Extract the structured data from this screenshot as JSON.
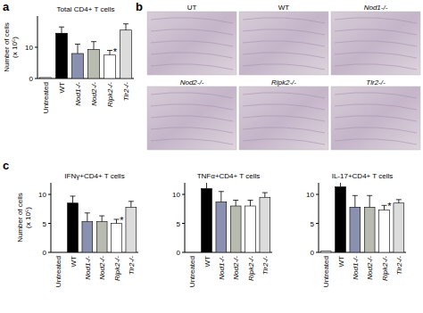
{
  "figure": {
    "panels": [
      "a",
      "b",
      "c"
    ],
    "images": {
      "labels": [
        "UT",
        "WT",
        "Nod1-/-",
        "Nod2-/-",
        "Ripk2-/-",
        "Tlr2-/-"
      ]
    }
  },
  "chart_data": [
    {
      "type": "bar",
      "title": "Total CD4+ T cells",
      "y_label": "Number of cells\n(x 10⁵)",
      "categories": [
        "Untreated",
        "WT",
        "Nod1-/-",
        "Nod2-/-",
        "Ripk2-/-",
        "Tlr2-/-"
      ],
      "values": [
        0.3,
        14.5,
        8,
        9.3,
        7.5,
        15.5
      ],
      "errors": [
        0,
        2,
        3,
        2.5,
        1.5,
        2
      ],
      "colors": [
        "#ffffff",
        "#000000",
        "#8a90b0",
        "#b8bcb0",
        "#ffffff",
        "#dcdcdc"
      ],
      "ylim": [
        0,
        20
      ],
      "yticks": [
        0,
        10
      ],
      "annotations": [
        {
          "text": "*",
          "x": 4
        }
      ]
    },
    {
      "type": "bar",
      "title": "IFNγ+CD4+ T cells",
      "y_label": "Number of cells\n(x 10⁵)",
      "categories": [
        "Untreated",
        "WT",
        "Nod1-/-",
        "Nod2-/-",
        "Ripk2-/-",
        "Tlr2-/-"
      ],
      "values": [
        0,
        8.5,
        5.3,
        5.3,
        5.0,
        7.8
      ],
      "errors": [
        0,
        1.2,
        1.5,
        1.0,
        0.7,
        1.0
      ],
      "colors": [
        "#ffffff",
        "#000000",
        "#8a90b0",
        "#b8bcb0",
        "#ffffff",
        "#dcdcdc"
      ],
      "ylim": [
        0,
        12
      ],
      "yticks": [
        0,
        5,
        10
      ],
      "annotations": [
        {
          "text": "*",
          "x": 4
        }
      ]
    },
    {
      "type": "bar",
      "title": "TNFα+CD4+ T cells",
      "categories": [
        "Untreated",
        "WT",
        "Nod1-/-",
        "Nod2-/-",
        "Ripk2-/-",
        "Tlr2-/-"
      ],
      "values": [
        0,
        11,
        8.7,
        8,
        8,
        9.5
      ],
      "errors": [
        0,
        1.2,
        1.8,
        1,
        1,
        0.8
      ],
      "colors": [
        "#ffffff",
        "#000000",
        "#8a90b0",
        "#b8bcb0",
        "#ffffff",
        "#dcdcdc"
      ],
      "ylim": [
        0,
        12
      ],
      "yticks": [
        0,
        5,
        10
      ]
    },
    {
      "type": "bar",
      "title": "IL-17+CD4+ T cells",
      "categories": [
        "Untreated",
        "WT",
        "Nod1-/-",
        "Nod2-/-",
        "Ripk2-/-",
        "Tlr2-/-"
      ],
      "values": [
        0.2,
        11.3,
        7.8,
        7.8,
        7.3,
        8.5
      ],
      "errors": [
        0,
        1.3,
        2,
        2,
        0.8,
        0.6
      ],
      "colors": [
        "#ffffff",
        "#000000",
        "#8a90b0",
        "#b8bcb0",
        "#ffffff",
        "#dcdcdc"
      ],
      "ylim": [
        0,
        12
      ],
      "yticks": [
        0,
        5,
        10
      ],
      "annotations": [
        {
          "text": "*",
          "x": 4
        }
      ]
    }
  ]
}
